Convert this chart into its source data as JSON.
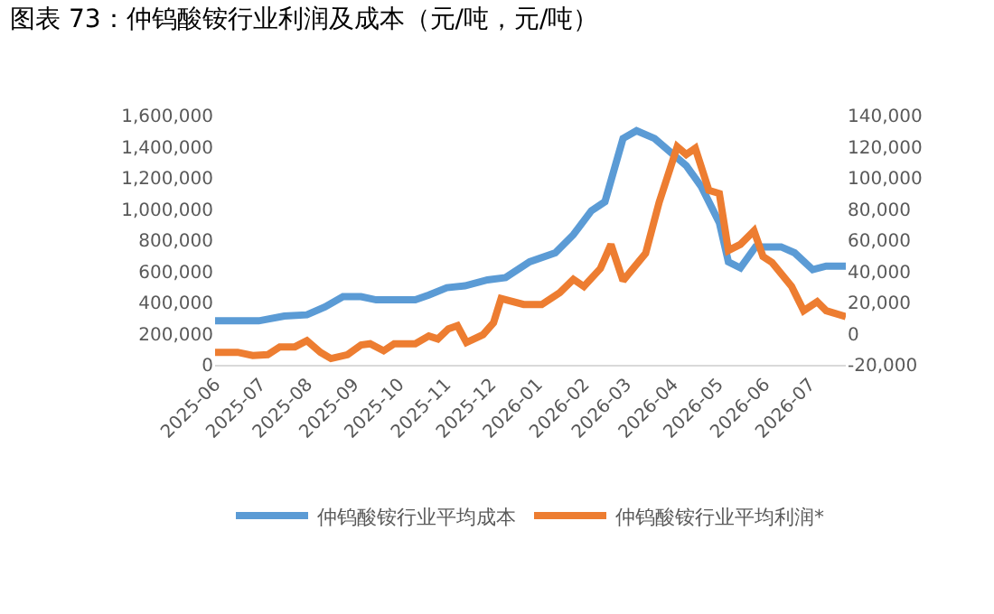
{
  "chart_data": {
    "type": "line",
    "title": "图表 73：仲钨酸铵行业利润及成本（元/吨，元/吨）",
    "series": [
      {
        "name": "仲钨酸铵行业平均成本",
        "color": "#5b9bd5",
        "x": [
          "2025-06-01",
          "2025-06-30",
          "2025-07-17",
          "2025-08-01",
          "2025-08-13",
          "2025-08-25",
          "2025-09-06",
          "2025-09-16",
          "2025-10-12",
          "2025-10-21",
          "2025-11-02",
          "2025-11-14",
          "2025-11-29",
          "2025-12-11",
          "2025-12-27",
          "2026-01-13",
          "2026-01-25",
          "2026-02-06",
          "2026-02-15",
          "2026-02-27",
          "2026-03-08",
          "2026-03-20",
          "2026-04-10",
          "2026-04-20",
          "2026-05-02",
          "2026-05-08",
          "2026-05-16",
          "2026-05-26",
          "2026-06-12",
          "2026-06-21",
          "2026-07-03",
          "2026-07-12",
          "2026-07-25"
        ],
        "values": [
          282000,
          282000,
          313000,
          321000,
          371000,
          437000,
          437000,
          417000,
          417000,
          448000,
          495000,
          507000,
          545000,
          560000,
          661000,
          719000,
          835000,
          989000,
          1047000,
          1453000,
          1503000,
          1453000,
          1279000,
          1144000,
          912000,
          661000,
          622000,
          757000,
          757000,
          719000,
          611000,
          634000,
          634000
        ]
      },
      {
        "name": "仲钨酸铵行业平均利润*",
        "color": "#ed7d31",
        "axis": "y2",
        "x": [
          "2025-06-01",
          "2025-06-16",
          "2025-06-26",
          "2025-07-06",
          "2025-07-14",
          "2025-07-24",
          "2025-08-01",
          "2025-08-10",
          "2025-08-17",
          "2025-08-28",
          "2025-09-06",
          "2025-09-12",
          "2025-09-21",
          "2025-09-28",
          "2025-10-12",
          "2025-10-21",
          "2025-10-27",
          "2025-11-03",
          "2025-11-09",
          "2025-11-15",
          "2025-11-26",
          "2025-12-03",
          "2025-12-08",
          "2025-12-23",
          "2026-01-04",
          "2026-01-16",
          "2026-01-25",
          "2026-02-01",
          "2026-02-12",
          "2026-02-19",
          "2026-02-27",
          "2026-03-14",
          "2026-03-23",
          "2026-04-04",
          "2026-04-10",
          "2026-04-16",
          "2026-04-25",
          "2026-05-02",
          "2026-05-08",
          "2026-05-16",
          "2026-05-25",
          "2026-05-31",
          "2026-06-06",
          "2026-06-19",
          "2026-06-27",
          "2026-07-06",
          "2026-07-12",
          "2026-07-25"
        ],
        "values": [
          -12000,
          -12000,
          -14000,
          -13500,
          -8500,
          -8500,
          -4500,
          -12000,
          -16000,
          -13500,
          -7300,
          -6500,
          -11000,
          -6500,
          -6500,
          -1500,
          -3400,
          3100,
          5100,
          -5700,
          -700,
          7000,
          22500,
          18700,
          18700,
          26300,
          34900,
          30300,
          41800,
          57300,
          34000,
          51500,
          84300,
          120000,
          115000,
          119000,
          92000,
          90000,
          53400,
          57300,
          66000,
          49500,
          45700,
          30300,
          14700,
          20500,
          14700,
          10900
        ]
      }
    ],
    "xlim": [
      "2025-06-01",
      "2026-07-25"
    ],
    "xticks": [
      {
        "value": "2025-06-01",
        "label": "2025-06"
      },
      {
        "value": "2025-07-01",
        "label": "2025-07"
      },
      {
        "value": "2025-08-01",
        "label": "2025-08"
      },
      {
        "value": "2025-09-01",
        "label": "2025-09"
      },
      {
        "value": "2025-10-01",
        "label": "2025-10"
      },
      {
        "value": "2025-11-01",
        "label": "2025-11"
      },
      {
        "value": "2025-12-01",
        "label": "2025-12"
      },
      {
        "value": "2026-01-01",
        "label": "2026-01"
      },
      {
        "value": "2026-02-01",
        "label": "2026-02"
      },
      {
        "value": "2026-03-01",
        "label": "2026-03"
      },
      {
        "value": "2026-04-01",
        "label": "2026-04"
      },
      {
        "value": "2026-05-01",
        "label": "2026-05"
      },
      {
        "value": "2026-06-01",
        "label": "2026-06"
      },
      {
        "value": "2026-07-01",
        "label": "2026-07"
      }
    ],
    "ylim": [
      0,
      1600000
    ],
    "yticks": [
      0,
      {
        "value": 200000,
        "label": "200,000"
      },
      {
        "value": 400000,
        "label": "400,000"
      },
      {
        "value": 600000,
        "label": "600,000"
      },
      {
        "value": 800000,
        "label": "800,000"
      },
      {
        "value": 1000000,
        "label": "1,000,000"
      },
      {
        "value": 1200000,
        "label": "1,200,000"
      },
      {
        "value": 1400000,
        "label": "1,400,000"
      },
      {
        "value": 1600000,
        "label": "1,600,000"
      }
    ],
    "y2lim": [
      -20000,
      140000
    ],
    "y2ticks": [
      {
        "value": -20000,
        "label": "-20,000"
      },
      0,
      {
        "value": 20000,
        "label": "20,000"
      },
      {
        "value": 40000,
        "label": "40,000"
      },
      {
        "value": 60000,
        "label": "60,000"
      },
      {
        "value": 80000,
        "label": "80,000"
      },
      {
        "value": 100000,
        "label": "100,000"
      },
      {
        "value": 120000,
        "label": "120,000"
      },
      {
        "value": 140000,
        "label": "140,000"
      }
    ],
    "grid": false,
    "legend": "bottom",
    "marker": "none",
    "line_style": "solid"
  }
}
